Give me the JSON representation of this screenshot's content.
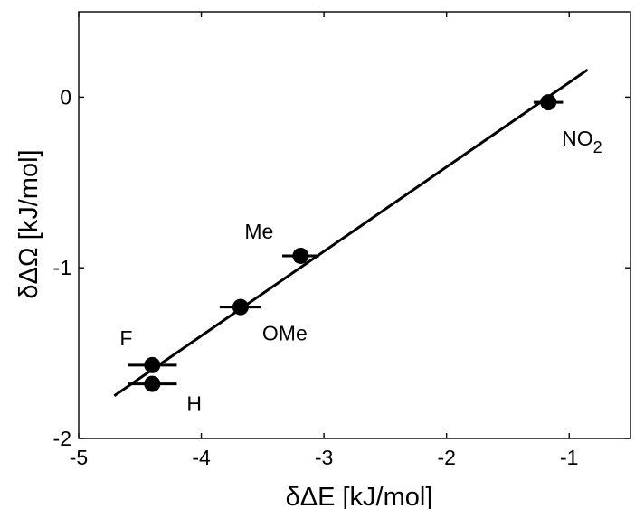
{
  "chart_data": {
    "type": "scatter",
    "title": "",
    "xlabel": "δΔE [kJ/mol]",
    "ylabel": "δΔΩ [kJ/mol]",
    "xlim": [
      -5,
      -0.5
    ],
    "ylim": [
      -2,
      0.5
    ],
    "xticks": [
      "-5",
      "-4",
      "-3",
      "-2",
      "-1"
    ],
    "xtick_values": [
      -5,
      -4,
      -3,
      -2,
      -1
    ],
    "yticks": [
      "-2",
      "-1",
      "0"
    ],
    "ytick_values": [
      -2,
      -1,
      0
    ],
    "grid": false,
    "legend": "none",
    "colors": {
      "marker": "#000000",
      "line": "#000000",
      "axis": "#000000"
    },
    "points": [
      {
        "label": "NO",
        "label_sub": "2",
        "x": -1.17,
        "y": -0.03,
        "xerr": 0.12
      },
      {
        "label": "Me",
        "x": -3.19,
        "y": -0.93,
        "xerr": 0.15
      },
      {
        "label": "OMe",
        "x": -3.68,
        "y": -1.23,
        "xerr": 0.17
      },
      {
        "label": "F",
        "x": -4.4,
        "y": -1.57,
        "xerr": 0.2
      },
      {
        "label": "H",
        "x": -4.4,
        "y": -1.68,
        "xerr": 0.2
      }
    ],
    "fit_line": {
      "x": [
        -4.71,
        -0.85
      ],
      "y": [
        -1.75,
        0.16
      ]
    }
  }
}
